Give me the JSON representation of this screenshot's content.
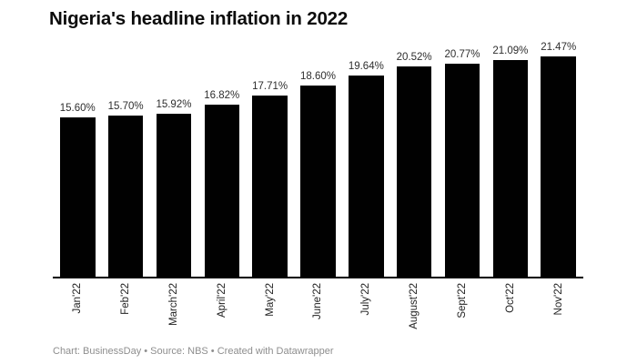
{
  "title": "Nigeria's headline inflation in 2022",
  "footer": {
    "text": "Chart: BusinessDay • Source: NBS • Created with Datawrapper"
  },
  "colors": {
    "bar": "#010101",
    "title": "#0c0c0c",
    "value_label": "#2e2e2e",
    "axis_label": "#222222",
    "axis_line": "#010101",
    "footer_text": "#8e8e8e",
    "background": "#ffffff"
  },
  "chart_data": {
    "type": "bar",
    "categories": [
      "Jan'22",
      "Feb'22",
      "March'22",
      "April'22",
      "May'22",
      "June'22",
      "July'22",
      "August'22",
      "Sept'22",
      "Oct'22",
      "Nov'22"
    ],
    "values": [
      15.6,
      15.7,
      15.92,
      16.82,
      17.71,
      18.6,
      19.64,
      20.52,
      20.77,
      21.09,
      21.47
    ],
    "value_labels": [
      "15.60%",
      "15.70%",
      "15.92%",
      "16.82%",
      "17.71%",
      "18.60%",
      "19.64%",
      "20.52%",
      "20.77%",
      "21.09%",
      "21.47%"
    ],
    "title": "Nigeria's headline inflation in 2022",
    "xlabel": "",
    "ylabel": "",
    "ylim": [
      0,
      22.5
    ],
    "grid": false,
    "legend": false,
    "value_labels_position": "above-bars",
    "x_tick_rotation_deg": 90
  }
}
